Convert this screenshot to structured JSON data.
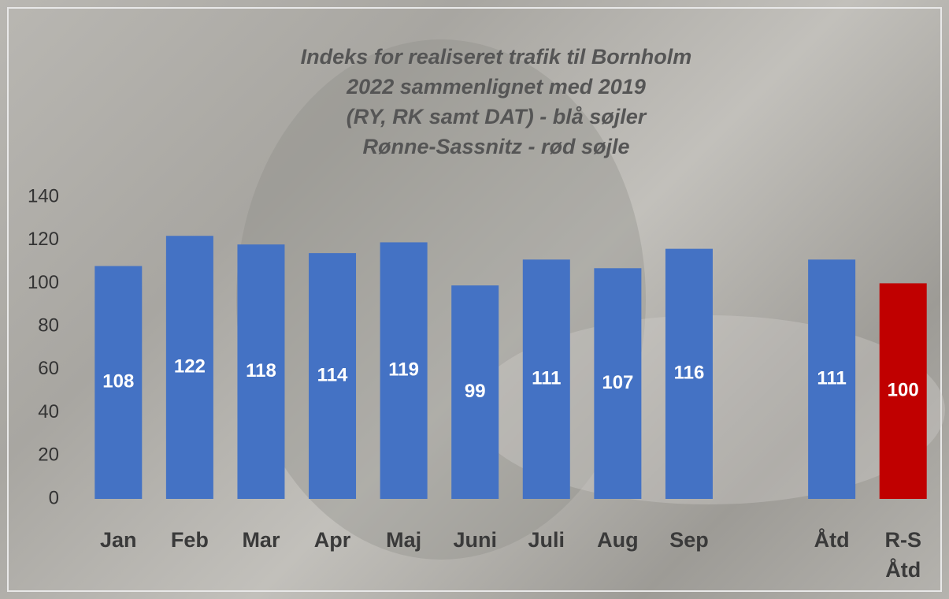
{
  "chart_data": {
    "type": "bar",
    "title": [
      "Indeks for realiseret trafik til Bornholm",
      "2022 sammenlignet med 2019",
      "(RY, RK samt DAT) - blå søjler",
      "Rønne-Sassnitz - rød søjle"
    ],
    "categories": [
      "Jan",
      "Feb",
      "Mar",
      "Apr",
      "Maj",
      "Juni",
      "Juli",
      "Aug",
      "Sep",
      null,
      "Åtd",
      "R-S Åtd"
    ],
    "values": [
      108,
      122,
      118,
      114,
      119,
      99,
      111,
      107,
      116,
      null,
      111,
      100
    ],
    "colors": [
      "#4472c4",
      "#4472c4",
      "#4472c4",
      "#4472c4",
      "#4472c4",
      "#4472c4",
      "#4472c4",
      "#4472c4",
      "#4472c4",
      null,
      "#4472c4",
      "#c00000"
    ],
    "ylim": [
      0,
      140
    ],
    "yticks": [
      0,
      20,
      40,
      60,
      80,
      100,
      120,
      140
    ],
    "grid": false
  }
}
